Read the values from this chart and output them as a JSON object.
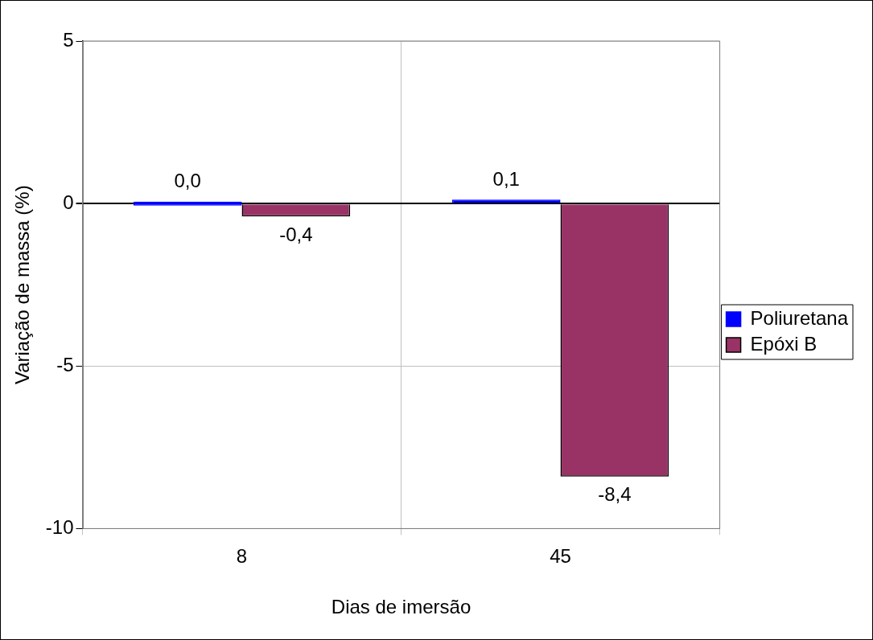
{
  "chart_data": {
    "type": "bar",
    "xlabel": "Dias de imersão",
    "ylabel": "Variação de massa (%)",
    "categories": [
      "8",
      "45"
    ],
    "series": [
      {
        "name": "Poliuretana",
        "color": "#0000ff",
        "values": [
          0.0,
          0.1
        ],
        "value_labels": [
          "0,0",
          "0,1"
        ]
      },
      {
        "name": "Epóxi B",
        "color": "#993366",
        "values": [
          -0.4,
          -8.4
        ],
        "value_labels": [
          "-0,4",
          "-8,4"
        ]
      }
    ],
    "ylim": [
      -10,
      5
    ],
    "yticks": [
      5,
      0,
      -5,
      -10
    ],
    "grid": true,
    "legend": "right"
  }
}
